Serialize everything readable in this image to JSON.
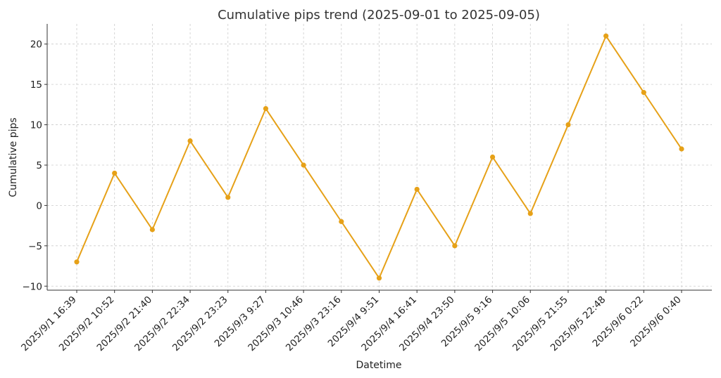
{
  "chart_data": {
    "type": "line",
    "title": "Cumulative pips trend (2025-09-01 to 2025-09-05)",
    "xlabel": "Datetime",
    "ylabel": "Cumulative pips",
    "categories": [
      "2025/9/1 16:39",
      "2025/9/2 10:52",
      "2025/9/2 21:40",
      "2025/9/2 22:34",
      "2025/9/2 23:23",
      "2025/9/3 9:27",
      "2025/9/3 10:46",
      "2025/9/3 23:16",
      "2025/9/4 9:51",
      "2025/9/4 16:41",
      "2025/9/4 23:50",
      "2025/9/5 9:16",
      "2025/9/5 10:06",
      "2025/9/5 21:55",
      "2025/9/5 22:48",
      "2025/9/6 0:22",
      "2025/9/6 0:40"
    ],
    "values": [
      -7,
      4,
      -3,
      8,
      1,
      12,
      5,
      -2,
      -9,
      2,
      -5,
      6,
      -1,
      10,
      21,
      14,
      7
    ],
    "yticks": [
      -10,
      -5,
      0,
      5,
      10,
      15,
      20
    ],
    "ytick_labels": [
      "−10",
      "−5",
      "0",
      "5",
      "10",
      "15",
      "20"
    ],
    "ylim": [
      -10.5,
      22.5
    ],
    "grid": true,
    "color": "#E6A118"
  }
}
